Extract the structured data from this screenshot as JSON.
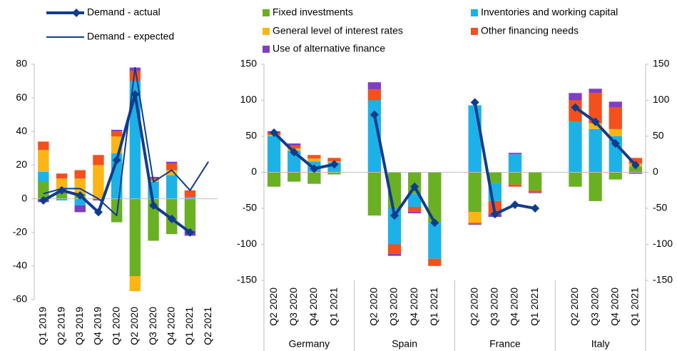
{
  "chart_data": [
    {
      "type": "bar",
      "categories": [
        "Q1 2019",
        "Q2 2019",
        "Q3 2019",
        "Q4 2019",
        "Q1 2020",
        "Q2 2020",
        "Q3 2020",
        "Q4 2020",
        "Q1 2021",
        "Q2 2021"
      ],
      "ylim": [
        -60,
        80
      ],
      "yticks": [
        -60,
        -40,
        -20,
        0,
        20,
        40,
        60,
        80
      ],
      "series": [
        {
          "name": "Fixed investments",
          "type": "bar",
          "color": "#6ab023",
          "values": [
            10,
            4,
            3,
            0,
            -14,
            -46,
            -25,
            -21,
            -19,
            null
          ]
        },
        {
          "name": "Inventories and working capital",
          "type": "bar",
          "color": "#1cb2e8",
          "values": [
            6,
            -1,
            -4,
            0,
            27,
            70,
            10,
            14,
            1,
            null
          ]
        },
        {
          "name": "General level of interest rates",
          "type": "bar",
          "color": "#fdb515",
          "values": [
            13,
            8,
            9,
            20,
            10,
            -9,
            1,
            3,
            0,
            null
          ]
        },
        {
          "name": "Other financing needs",
          "type": "bar",
          "color": "#f4501e",
          "values": [
            5,
            3,
            5,
            6,
            3,
            6,
            1,
            4,
            4,
            null
          ]
        },
        {
          "name": "Use of alternative finance",
          "type": "bar",
          "color": "#7f3fc1",
          "values": [
            -2,
            0,
            -4,
            -1,
            1,
            2,
            1,
            1,
            -3,
            null
          ]
        },
        {
          "name": "Demand - actual",
          "type": "line",
          "marker": "diamond",
          "line_width": 4,
          "color": "#103c8c",
          "values": [
            -1,
            5,
            2,
            -8,
            23,
            62,
            -4,
            -12,
            -20,
            null
          ]
        },
        {
          "name": "Demand - expected",
          "type": "line",
          "line_width": 2,
          "color": "#103c8c",
          "values": [
            3,
            6,
            6,
            0,
            -10,
            78,
            10,
            17,
            5,
            22
          ]
        }
      ]
    },
    {
      "type": "bar",
      "categories": [
        "Q2 2020",
        "Q3 2020",
        "Q4 2020",
        "Q1 2021",
        "Q2 2020",
        "Q3 2020",
        "Q4 2020",
        "Q1 2021",
        "Q2 2020",
        "Q3 2020",
        "Q4 2020",
        "Q1 2021",
        "Q2 2020",
        "Q3 2020",
        "Q4 2020",
        "Q1 2021"
      ],
      "groups": [
        "Germany",
        "Spain",
        "France",
        "Italy"
      ],
      "ylim": [
        -150,
        150
      ],
      "yticks": [
        -150,
        -100,
        -50,
        0,
        50,
        100,
        150
      ],
      "y2lim": [
        -150,
        150
      ],
      "y2ticks": [
        -150,
        -100,
        -50,
        0,
        50,
        100,
        150
      ],
      "series": [
        {
          "name": "Fixed investments",
          "type": "bar",
          "color": "#6ab023",
          "values": [
            -20,
            -13,
            -16,
            -3,
            -60,
            -50,
            -30,
            -70,
            -55,
            -15,
            -17,
            -25,
            -20,
            -40,
            -10,
            8
          ]
        },
        {
          "name": "Inventories and working capital",
          "type": "bar",
          "color": "#1cb2e8",
          "values": [
            50,
            30,
            15,
            14,
            100,
            -50,
            -18,
            -50,
            93,
            -25,
            25,
            0,
            70,
            60,
            50,
            0
          ]
        },
        {
          "name": "General level of interest rates",
          "type": "bar",
          "color": "#fdb515",
          "values": [
            2,
            3,
            4,
            1,
            0,
            0,
            0,
            0,
            -15,
            0,
            0,
            0,
            0,
            8,
            10,
            4
          ]
        },
        {
          "name": "Other financing needs",
          "type": "bar",
          "color": "#f4501e",
          "values": [
            3,
            4,
            5,
            5,
            15,
            -13,
            -7,
            -10,
            -2,
            -18,
            -3,
            -3,
            30,
            42,
            30,
            8
          ]
        },
        {
          "name": "Use of alternative finance",
          "type": "bar",
          "color": "#7f3fc1",
          "values": [
            2,
            3,
            0,
            0,
            10,
            -3,
            -2,
            0,
            -1,
            -4,
            2,
            -1,
            10,
            6,
            8,
            -2
          ]
        },
        {
          "name": "Demand - actual",
          "type": "line",
          "marker": "diamond",
          "line_width": 4,
          "color": "#103c8c",
          "values": [
            55,
            28,
            5,
            11,
            80,
            -60,
            -20,
            -70,
            97,
            -58,
            -45,
            -50,
            90,
            70,
            40,
            10
          ]
        }
      ]
    }
  ]
}
